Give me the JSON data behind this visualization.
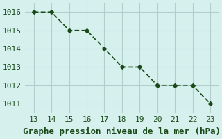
{
  "x": [
    13,
    14,
    15,
    16,
    17,
    18,
    19,
    20,
    21,
    22,
    23
  ],
  "y": [
    1016,
    1016,
    1015,
    1015,
    1014,
    1013,
    1013,
    1012,
    1012,
    1012,
    1011
  ],
  "line_color": "#1a4a1a",
  "marker": "D",
  "marker_size": 3,
  "background_color": "#d6f0ee",
  "grid_color": "#b0ceca",
  "xlabel": "Graphe pression niveau de la mer (hPa)",
  "xlabel_color": "#1a4a1a",
  "xlabel_fontsize": 9,
  "tick_color": "#1a4a1a",
  "tick_fontsize": 8,
  "xlim": [
    12.5,
    23.5
  ],
  "ylim": [
    1010.5,
    1016.5
  ],
  "xticks": [
    13,
    14,
    15,
    16,
    17,
    18,
    19,
    20,
    21,
    22,
    23
  ],
  "yticks": [
    1011,
    1012,
    1013,
    1014,
    1015,
    1016
  ]
}
